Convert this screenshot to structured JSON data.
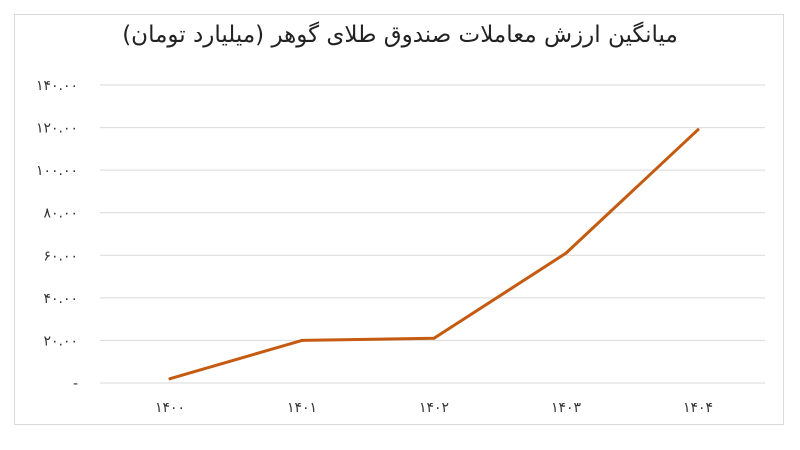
{
  "chart_data": {
    "type": "line",
    "title": "میانگین ارزش معاملات صندوق طلای گوهر (میلیارد تومان)",
    "xlabel": "",
    "ylabel": "",
    "categories": [
      "۱۴۰۰",
      "۱۴۰۱",
      "۱۴۰۲",
      "۱۴۰۳",
      "۱۴۰۴"
    ],
    "series": [
      {
        "values": [
          2,
          20,
          21,
          61,
          119
        ]
      }
    ],
    "ylim": [
      0,
      140
    ],
    "yticks": [
      0,
      20,
      40,
      60,
      80,
      100,
      120,
      140
    ],
    "ytick_labels": [
      "-",
      "۲۰.۰۰",
      "۴۰.۰۰",
      "۶۰.۰۰",
      "۸۰.۰۰",
      "۱۰۰.۰۰",
      "۱۲۰.۰۰",
      "۱۴۰.۰۰"
    ],
    "grid": true,
    "legend": "none",
    "line_color": "#c55a11",
    "grid_color": "#d9d9d9"
  }
}
